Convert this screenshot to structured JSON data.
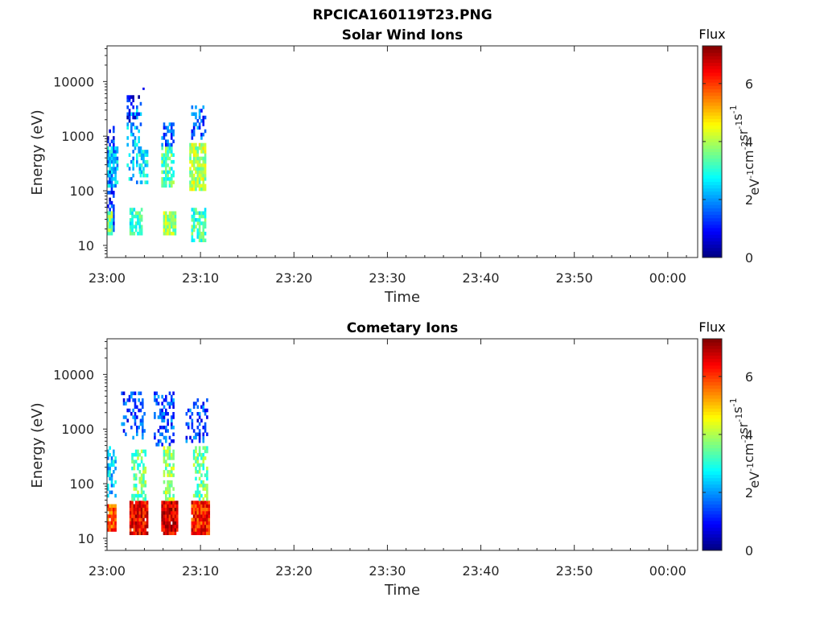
{
  "figure": {
    "title": "RPCICA160119T23.PNG"
  },
  "chart_data": [
    {
      "type": "heatmap",
      "title": "Solar Wind Ions",
      "xlabel": "Time",
      "ylabel": "Energy (eV)",
      "x_tick_labels": [
        "23:00",
        "23:10",
        "23:20",
        "23:30",
        "23:40",
        "23:50",
        "00:00"
      ],
      "x_tick_minutes": [
        0,
        10,
        20,
        30,
        40,
        50,
        60
      ],
      "xlim_minutes": [
        0,
        63.2
      ],
      "y_scale": "log",
      "ylim": [
        6,
        45000
      ],
      "y_tick_labels": [
        "10",
        "100",
        "1000",
        "10000"
      ],
      "y_tick_values": [
        10,
        100,
        1000,
        10000
      ],
      "colorbar": {
        "title": "Flux",
        "label": "eV-1cm-2sr-1s-1",
        "range": [
          0,
          7.3
        ],
        "tick_labels": [
          "0",
          "2",
          "4",
          "6"
        ],
        "tick_values": [
          0,
          2,
          4,
          6
        ],
        "colormap": "jet"
      },
      "bursts": [
        {
          "t0": 0.0,
          "t1": 0.8,
          "level": 1.1,
          "emin": 20,
          "emax": 1300,
          "density": 0.55,
          "high": {
            "emin": 1000,
            "emax": 1400,
            "level": 1.0
          }
        },
        {
          "t0": 0.0,
          "t1": 0.6,
          "level": 3.6,
          "emin": 16,
          "emax": 40,
          "density": 0.9
        },
        {
          "t0": 0.0,
          "t1": 1.2,
          "level": 2.3,
          "emin": 130,
          "emax": 600,
          "density": 0.7
        },
        {
          "t0": 2.1,
          "t1": 3.7,
          "level": 2.2,
          "emin": 140,
          "emax": 3000,
          "density": 0.35,
          "high": {
            "emin": 2000,
            "emax": 5500,
            "level": 0.9
          }
        },
        {
          "t0": 2.4,
          "t1": 3.8,
          "level": 3.2,
          "emin": 16,
          "emax": 45,
          "density": 0.75
        },
        {
          "t0": 3.4,
          "t1": 4.3,
          "level": 2.6,
          "emin": 140,
          "emax": 500,
          "density": 0.55
        },
        {
          "t0": 5.8,
          "t1": 7.2,
          "level": 3.3,
          "emin": 130,
          "emax": 600,
          "density": 0.7,
          "high": {
            "emin": 700,
            "emax": 1600,
            "level": 1.6
          }
        },
        {
          "t0": 6.0,
          "t1": 7.3,
          "level": 3.9,
          "emin": 16,
          "emax": 40,
          "density": 0.85
        },
        {
          "t0": 8.8,
          "t1": 10.5,
          "level": 4.0,
          "emin": 100,
          "emax": 700,
          "density": 0.8,
          "high": {
            "emin": 900,
            "emax": 3200,
            "level": 1.5
          }
        },
        {
          "t0": 9.0,
          "t1": 10.4,
          "level": 3.2,
          "emin": 12,
          "emax": 45,
          "density": 0.7
        }
      ],
      "outliers": [
        {
          "t": 2.3,
          "e": 4500,
          "level": 0.8
        },
        {
          "t": 3.8,
          "e": 7000,
          "level": 0.8
        }
      ]
    },
    {
      "type": "heatmap",
      "title": "Cometary Ions",
      "xlabel": "Time",
      "ylabel": "Energy (eV)",
      "x_tick_labels": [
        "23:00",
        "23:10",
        "23:20",
        "23:30",
        "23:40",
        "23:50",
        "00:00"
      ],
      "x_tick_minutes": [
        0,
        10,
        20,
        30,
        40,
        50,
        60
      ],
      "xlim_minutes": [
        0,
        63.2
      ],
      "y_scale": "log",
      "ylim": [
        6,
        45000
      ],
      "y_tick_labels": [
        "10",
        "100",
        "1000",
        "10000"
      ],
      "y_tick_values": [
        10,
        100,
        1000,
        10000
      ],
      "colorbar": {
        "title": "Flux",
        "label": "eV-1cm-2sr-1s-1",
        "range": [
          0,
          7.3
        ],
        "tick_labels": [
          "0",
          "2",
          "4",
          "6"
        ],
        "tick_values": [
          0,
          2,
          4,
          6
        ],
        "colormap": "jet"
      },
      "bursts": [
        {
          "t0": 0.0,
          "t1": 1.0,
          "level": 5.8,
          "emin": 14,
          "emax": 42,
          "density": 0.95
        },
        {
          "t0": 0.0,
          "t1": 1.0,
          "level": 2.4,
          "emin": 60,
          "emax": 450,
          "density": 0.45
        },
        {
          "t0": 1.5,
          "t1": 4.0,
          "level": 1.4,
          "emin": 700,
          "emax": 4500,
          "density": 0.35
        },
        {
          "t0": 2.4,
          "t1": 4.4,
          "level": 6.4,
          "emin": 12,
          "emax": 45,
          "density": 0.95
        },
        {
          "t0": 2.6,
          "t1": 4.2,
          "level": 3.5,
          "emin": 50,
          "emax": 400,
          "density": 0.6
        },
        {
          "t0": 5.0,
          "t1": 7.2,
          "level": 1.5,
          "emin": 500,
          "emax": 4500,
          "density": 0.4
        },
        {
          "t0": 5.8,
          "t1": 7.6,
          "level": 6.6,
          "emin": 12,
          "emax": 45,
          "density": 0.95
        },
        {
          "t0": 6.0,
          "t1": 7.1,
          "level": 3.8,
          "emin": 50,
          "emax": 450,
          "density": 0.6
        },
        {
          "t0": 8.4,
          "t1": 10.6,
          "level": 1.4,
          "emin": 600,
          "emax": 3200,
          "density": 0.4
        },
        {
          "t0": 9.0,
          "t1": 10.8,
          "level": 6.2,
          "emin": 12,
          "emax": 45,
          "density": 0.95
        },
        {
          "t0": 9.2,
          "t1": 10.6,
          "level": 3.5,
          "emin": 50,
          "emax": 450,
          "density": 0.6
        }
      ],
      "outliers": []
    }
  ]
}
